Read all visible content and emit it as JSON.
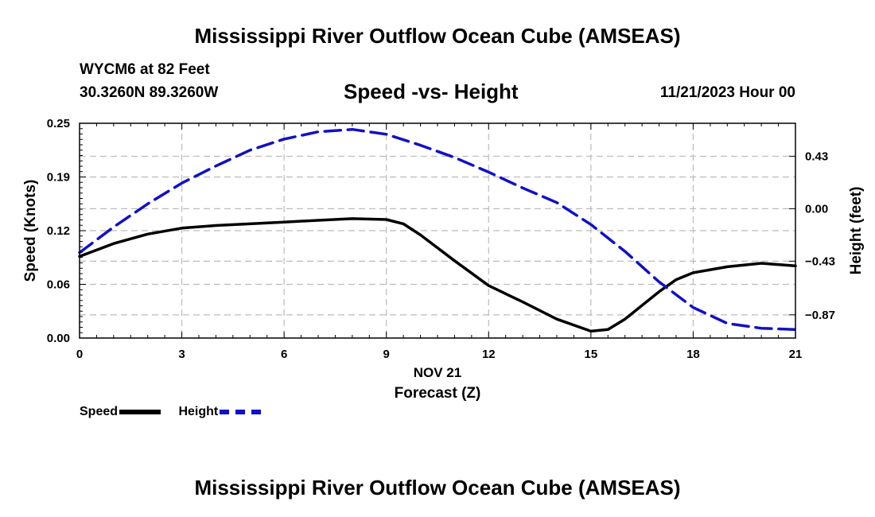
{
  "page": {
    "main_title": "Mississippi River Outflow Ocean Cube (AMSEAS)",
    "bottom_title": "Mississippi River Outflow Ocean Cube (AMSEAS)",
    "station": "WYCM6 at 82 Feet",
    "coords": "30.3260N  89.3260W",
    "chart_title": "Speed -vs- Height",
    "date_label": "11/21/2023 Hour 00"
  },
  "legend": {
    "speed_label": "Speed",
    "height_label": "Height"
  },
  "chart_data": {
    "type": "line",
    "title": "Speed -vs- Height",
    "xlabel": "Forecast (Z)",
    "xlabel_date": "NOV 21",
    "ylabel": "Speed (Knots)",
    "y2label": "Height (feet)",
    "xlim": [
      0,
      21
    ],
    "ylim": [
      0,
      0.25
    ],
    "y2lim": [
      -1.06,
      0.7
    ],
    "x_ticks": [
      0,
      3,
      6,
      9,
      12,
      15,
      18,
      21
    ],
    "x_tick_labels": [
      "0",
      "3",
      "6",
      "9",
      "12",
      "15",
      "18",
      "21"
    ],
    "y_ticks": [
      0,
      0.0625,
      0.125,
      0.1875,
      0.25
    ],
    "y_tick_labels": [
      "0.00",
      "0.06",
      "0.12",
      "0.19",
      "0.25"
    ],
    "y2_ticks": [
      -0.87,
      -0.43,
      0.0,
      0.43
    ],
    "y2_tick_labels": [
      "−0.87",
      "−0.43",
      "0.00",
      "0.43"
    ],
    "grid": true,
    "colors": {
      "speed": "#000000",
      "height": "#1010c8",
      "grid": "#bbbbbb"
    },
    "series": [
      {
        "name": "Speed",
        "axis": "left",
        "x": [
          0,
          1,
          2,
          3,
          4,
          5,
          6,
          7,
          8,
          9,
          9.5,
          10,
          11,
          12,
          13,
          14,
          15,
          15.5,
          16,
          17,
          17.5,
          18,
          19,
          20,
          21
        ],
        "values": [
          0.095,
          0.11,
          0.121,
          0.128,
          0.131,
          0.133,
          0.135,
          0.137,
          0.139,
          0.138,
          0.133,
          0.12,
          0.09,
          0.061,
          0.042,
          0.022,
          0.008,
          0.01,
          0.022,
          0.054,
          0.068,
          0.076,
          0.083,
          0.087,
          0.084
        ]
      },
      {
        "name": "Height",
        "axis": "right",
        "x": [
          0,
          1,
          2,
          3,
          4,
          5,
          6,
          7,
          8,
          9,
          10,
          11,
          12,
          13,
          14,
          15,
          16,
          17,
          18,
          19,
          20,
          21
        ],
        "values": [
          -0.36,
          -0.15,
          0.04,
          0.21,
          0.35,
          0.48,
          0.57,
          0.63,
          0.65,
          0.61,
          0.52,
          0.42,
          0.3,
          0.17,
          0.05,
          -0.13,
          -0.35,
          -0.6,
          -0.81,
          -0.94,
          -0.98,
          -0.99
        ]
      }
    ]
  }
}
